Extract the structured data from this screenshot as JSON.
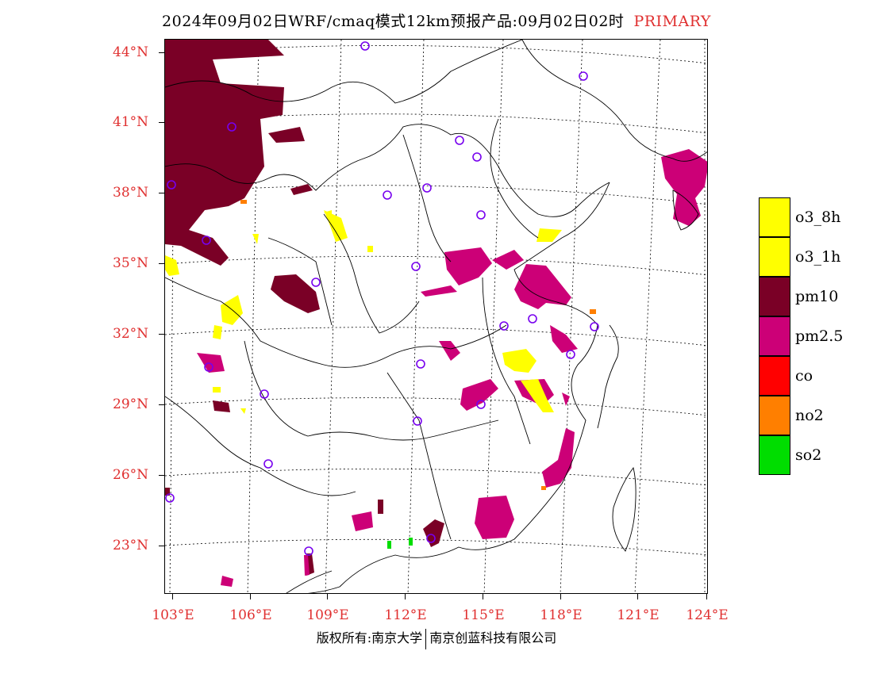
{
  "header": {
    "title": "2024年09月02日WRF/cmaq模式12km预报产品:09月02日02时",
    "tag": "PRIMARY"
  },
  "axes": {
    "lat_labels": [
      "44°N",
      "41°N",
      "38°N",
      "35°N",
      "32°N",
      "29°N",
      "26°N",
      "23°N"
    ],
    "lon_labels": [
      "103°E",
      "106°E",
      "109°E",
      "112°E",
      "115°E",
      "118°E",
      "121°E",
      "124°E"
    ]
  },
  "legend": {
    "items": [
      {
        "label": "o3_8h",
        "color": "#ffff00"
      },
      {
        "label": "o3_1h",
        "color": "#ffff00"
      },
      {
        "label": "pm10",
        "color": "#7a0026"
      },
      {
        "label": "pm2.5",
        "color": "#cc0077"
      },
      {
        "label": "co",
        "color": "#ff0000"
      },
      {
        "label": "no2",
        "color": "#ff7f00"
      },
      {
        "label": "so2",
        "color": "#00dd00"
      }
    ]
  },
  "footer": {
    "left": "版权所有:南京大学",
    "right": "南京创蓝科技有限公司"
  }
}
